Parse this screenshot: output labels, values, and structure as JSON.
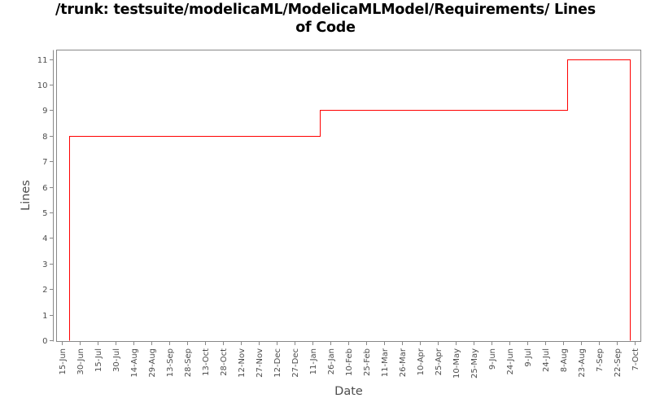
{
  "title": {
    "full": "/trunk: testsuite/modelicaML/ModelicaMLModel/Requirements/ Lines of Code",
    "line1": "/trunk: testsuite/modelicaML/ModelicaMLModel/Requirements/ Lines",
    "line2": "of Code"
  },
  "chart_data": {
    "type": "line",
    "step": true,
    "title": "/trunk: testsuite/modelicaML/ModelicaMLModel/Requirements/ Lines of Code",
    "xlabel": "Date",
    "ylabel": "Lines",
    "x_tick_labels": [
      "15-Jun",
      "30-Jun",
      "15-Jul",
      "30-Jul",
      "14-Aug",
      "29-Aug",
      "13-Sep",
      "28-Sep",
      "13-Oct",
      "28-Oct",
      "12-Nov",
      "27-Nov",
      "12-Dec",
      "27-Dec",
      "11-Jan",
      "26-Jan",
      "10-Feb",
      "25-Feb",
      "11-Mar",
      "26-Mar",
      "10-Apr",
      "25-Apr",
      "10-May",
      "25-May",
      "9-Jun",
      "24-Jun",
      "9-Jul",
      "24-Jul",
      "8-Aug",
      "23-Aug",
      "7-Sep",
      "22-Sep",
      "7-Oct"
    ],
    "y_tick_labels": [
      "0",
      "1",
      "2",
      "3",
      "4",
      "5",
      "6",
      "7",
      "8",
      "9",
      "10",
      "11"
    ],
    "ylim": [
      0,
      11
    ],
    "grid": false,
    "legend": "none",
    "colors": {
      "line": "#ff0000",
      "axis": "#888888",
      "tick_text": "#4d4d4d",
      "title_text": "#000000",
      "background": "#ffffff"
    },
    "series": [
      {
        "name": "Lines of Code",
        "x_unit": "x-tick index (0 = 15-Jun, one tick = 15 days)",
        "points": [
          [
            0.41,
            0
          ],
          [
            0.41,
            8
          ],
          [
            14.41,
            8
          ],
          [
            14.41,
            9
          ],
          [
            28.23,
            9
          ],
          [
            28.23,
            11
          ],
          [
            31.73,
            11
          ],
          [
            31.73,
            0
          ]
        ],
        "steps": [
          {
            "near": "20-Jun",
            "value": 8
          },
          {
            "near": "17-Jan",
            "value": 9
          },
          {
            "near": "11-Aug",
            "value": 11
          },
          {
            "near": "4-Oct",
            "value": 0
          }
        ]
      }
    ]
  }
}
